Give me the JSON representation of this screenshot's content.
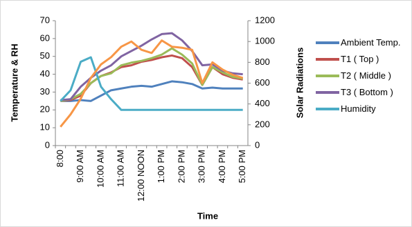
{
  "chart_data": {
    "type": "line",
    "y_label": "Temperature & RH",
    "y2_label": "Solar Radiations",
    "x_label": "Time",
    "categories": [
      "8:00",
      null,
      "9:00 AM",
      null,
      "10:00 AM",
      null,
      "11:00 AM",
      null,
      "12:00 NOON",
      null,
      "1:00 PM",
      null,
      "2:00 PM",
      null,
      "3:00 PM",
      null,
      "4:00 PM",
      null,
      "5:00 PM"
    ],
    "series": [
      {
        "name": "Ambient Temp.",
        "color": "#4f81bd",
        "values": [
          25,
          25,
          25.5,
          25,
          28,
          31,
          32,
          33,
          33.5,
          33,
          34.5,
          36,
          35.5,
          34.5,
          32,
          32.5,
          32,
          32,
          32
        ]
      },
      {
        "name": "T1 ( Top )",
        "color": "#c0504d",
        "values": [
          25,
          25.5,
          28,
          35,
          39,
          41,
          44,
          45,
          47,
          48,
          49.5,
          50.5,
          49,
          44,
          34,
          44,
          40,
          38,
          37
        ]
      },
      {
        "name": "T2 ( Middle )",
        "color": "#9bbb59",
        "values": [
          25,
          26,
          29,
          35,
          39,
          40.5,
          45,
          46.5,
          47.5,
          49,
          51,
          54.5,
          51,
          46,
          34,
          44,
          41,
          38.5,
          37.5
        ]
      },
      {
        "name": "T3 ( Bottom )",
        "color": "#8064a2",
        "values": [
          25.5,
          26,
          33,
          38,
          42,
          45,
          50,
          53,
          56,
          59.5,
          62.5,
          63,
          59,
          53,
          45,
          45.5,
          42,
          40.5,
          40
        ]
      },
      {
        "name": "Humidity",
        "color": "#4bacc6",
        "values": [
          25,
          31,
          47,
          49.5,
          33,
          26,
          20,
          20,
          20,
          20,
          20,
          20,
          20,
          20,
          20,
          20,
          20,
          20,
          20
        ]
      },
      {
        "color": "#f79646",
        "axis": "y2",
        "values": [
          180,
          300,
          450,
          650,
          780,
          850,
          950,
          1000,
          920,
          890,
          1010,
          950,
          940,
          920,
          600,
          800,
          730,
          680,
          650
        ]
      }
    ],
    "ylim": [
      0,
      70
    ],
    "yticks": [
      0,
      10,
      20,
      30,
      40,
      50,
      60,
      70
    ],
    "y2lim": [
      0,
      1200
    ],
    "y2ticks": [
      0,
      200,
      400,
      600,
      800,
      1000,
      1200
    ],
    "grid": false,
    "legend": "right"
  }
}
